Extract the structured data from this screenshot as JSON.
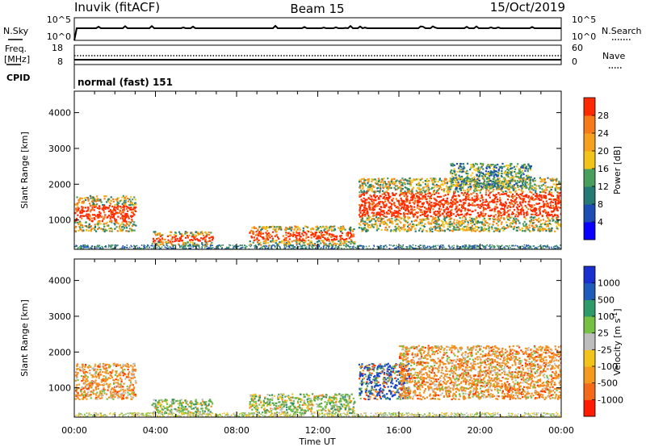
{
  "header": {
    "title_left": "Inuvik (fitACF)",
    "title_center": "Beam 15",
    "title_right": "15/Oct/2019"
  },
  "sky_panel": {
    "left_label": "N.Sky",
    "left_top_tick": "10^5",
    "left_bottom_tick": "10^0",
    "right_label": "N.Search",
    "right_top_tick": "10^5",
    "right_bottom_tick": "10^0"
  },
  "freq_panel": {
    "left_label_1": "Freq.",
    "left_label_2": "[MHz]",
    "left_top_tick": "18",
    "left_bottom_tick": "8",
    "right_label": "Nave",
    "right_top_tick": "60",
    "right_bottom_tick": "0"
  },
  "cpid": {
    "label": "CPID",
    "value": "normal (fast) 151"
  },
  "colors": {
    "scatter_red": "#ff2a00",
    "scatter_orange": "#f58a1f",
    "scatter_yellow": "#f2c318",
    "scatter_green": "#5aa84b",
    "scatter_teal": "#2e8a69",
    "scatter_blue": "#1a3fd0",
    "ground_gray": "#bdbdbd"
  },
  "chart_data": [
    {
      "type": "heatmap",
      "panel": "power",
      "xlabel": "",
      "ylabel": "Slant Range [km]",
      "ylim": [
        180,
        4600
      ],
      "xlim_hours": [
        0,
        24
      ],
      "y_ticks": [
        "1000",
        "2000",
        "3000",
        "4000"
      ],
      "colorbar": {
        "label": "Power [dB]",
        "ticks": [
          "28",
          "24",
          "20",
          "16",
          "12",
          "8",
          "4"
        ],
        "colors": [
          "#0a00ff",
          "#1e4cb3",
          "#267a74",
          "#4a9e5c",
          "#f2c318",
          "#f5a01f",
          "#f57a19",
          "#ff2a00"
        ]
      },
      "scatter_regions": [
        {
          "t_start": 0.0,
          "t_end": 3.0,
          "r_min": 700,
          "r_max": 1700,
          "level": "high"
        },
        {
          "t_start": 3.8,
          "t_end": 6.8,
          "r_min": 300,
          "r_max": 700,
          "level": "high"
        },
        {
          "t_start": 8.6,
          "t_end": 13.8,
          "r_min": 300,
          "r_max": 850,
          "level": "high"
        },
        {
          "t_start": 14.0,
          "t_end": 24.0,
          "r_min": 700,
          "r_max": 2200,
          "level": "high"
        },
        {
          "t_start": 18.5,
          "t_end": 22.5,
          "r_min": 1900,
          "r_max": 2600,
          "level": "low"
        }
      ]
    },
    {
      "type": "heatmap",
      "panel": "velocity",
      "xlabel": "Time UT",
      "ylabel": "Slant Range [km]",
      "ylim": [
        180,
        4600
      ],
      "xlim_hours": [
        0,
        24
      ],
      "x_ticks": [
        "00:00",
        "04:00",
        "08:00",
        "12:00",
        "16:00",
        "20:00",
        "00:00"
      ],
      "y_ticks": [
        "1000",
        "2000",
        "3000",
        "4000"
      ],
      "colorbar": {
        "label": "Velocity [m s^-1]",
        "ticks": [
          "1000",
          "500",
          "100",
          "25",
          "-25",
          "-100",
          "-500",
          "-1000"
        ],
        "colors": [
          "#ff1a00",
          "#f56a19",
          "#f59a1f",
          "#f2c318",
          "#bdbdbd",
          "#76c043",
          "#2f9a69",
          "#1d5cb8",
          "#1a2fd0"
        ]
      },
      "scatter_regions": [
        {
          "t_start": 0.0,
          "t_end": 3.0,
          "r_min": 700,
          "r_max": 1700,
          "dominant": "orange"
        },
        {
          "t_start": 3.8,
          "t_end": 6.8,
          "r_min": 300,
          "r_max": 700,
          "dominant": "green"
        },
        {
          "t_start": 8.6,
          "t_end": 13.8,
          "r_min": 300,
          "r_max": 850,
          "dominant": "green"
        },
        {
          "t_start": 14.0,
          "t_end": 16.5,
          "r_min": 700,
          "r_max": 1700,
          "dominant": "blue"
        },
        {
          "t_start": 16.0,
          "t_end": 24.0,
          "r_min": 700,
          "r_max": 2200,
          "dominant": "orange"
        }
      ]
    }
  ]
}
